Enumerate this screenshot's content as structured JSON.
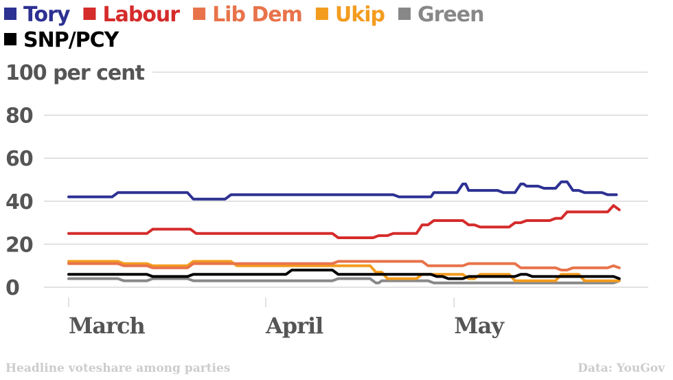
{
  "chart_data": {
    "type": "line",
    "title": "",
    "y_unit_label": "100 per cent",
    "ylim": [
      0,
      100
    ],
    "yticks": [
      0,
      20,
      40,
      60,
      80,
      100
    ],
    "ytick_labels": [
      "0",
      "20",
      "40",
      "60",
      "80",
      "100 per cent"
    ],
    "xlim": [
      0,
      100
    ],
    "month_labels": [
      {
        "label": "March",
        "x": 0
      },
      {
        "label": "April",
        "x": 34
      },
      {
        "label": "May",
        "x": 66.5
      }
    ],
    "grid": true,
    "legend_position": "top-left",
    "footnote_left": "Headline voteshare among parties",
    "footnote_right": "Data: YouGov",
    "series": [
      {
        "name": "Tory",
        "color": "#2d3192",
        "x": [
          0,
          7.5,
          8.5,
          20.5,
          21.5,
          27,
          28,
          56,
          57,
          62.5,
          63,
          67,
          68,
          68.5,
          69,
          74,
          75,
          77,
          78,
          78.5,
          79,
          81,
          82,
          84,
          85,
          86,
          87,
          88,
          89,
          92,
          93,
          94.5
        ],
        "y": [
          42,
          42,
          44,
          44,
          41,
          41,
          43,
          43,
          42,
          42,
          44,
          44,
          48,
          48,
          45,
          45,
          44,
          44,
          48,
          48,
          47,
          47,
          46,
          46,
          49,
          49,
          45,
          45,
          44,
          44,
          43,
          43
        ]
      },
      {
        "name": "Labour",
        "color": "#d52b2b",
        "x": [
          0,
          13.5,
          14.5,
          21,
          22,
          45.5,
          46.5,
          52.5,
          53.5,
          55,
          56,
          60,
          61,
          62,
          63,
          68,
          69,
          70,
          71,
          76,
          77,
          78,
          79,
          83,
          84,
          85,
          86,
          93,
          94,
          95
        ],
        "y": [
          25,
          25,
          27,
          27,
          25,
          25,
          23,
          23,
          24,
          24,
          25,
          25,
          29,
          29,
          31,
          31,
          29,
          29,
          28,
          28,
          30,
          30,
          31,
          31,
          32,
          32,
          35,
          35,
          38,
          36
        ]
      },
      {
        "name": "Lib Dem",
        "color": "#e8734a",
        "x": [
          0,
          8.5,
          9.5,
          13.5,
          14.5,
          20.5,
          21.5,
          28,
          29,
          45.5,
          46.5,
          59,
          60,
          61,
          62,
          68,
          69,
          70,
          71,
          77,
          78,
          84,
          85,
          86,
          87,
          93,
          94,
          95
        ],
        "y": [
          11,
          11,
          10,
          10,
          9,
          9,
          11,
          11,
          11,
          11,
          12,
          12,
          12,
          12,
          10,
          10,
          11,
          11,
          11,
          11,
          9,
          9,
          8,
          8,
          9,
          9,
          10,
          9
        ]
      },
      {
        "name": "Ukip",
        "color": "#f39c1e",
        "x": [
          0,
          8.5,
          9.5,
          13.5,
          14.5,
          20.5,
          21.5,
          28,
          29,
          45.5,
          46.5,
          52,
          53,
          54,
          55,
          60,
          61,
          63,
          64,
          68,
          69,
          70,
          71,
          76,
          77,
          82,
          83,
          84,
          85,
          88,
          89,
          93,
          94,
          95
        ],
        "y": [
          12,
          12,
          11,
          11,
          10,
          10,
          12,
          12,
          10,
          10,
          10,
          10,
          7,
          7,
          4,
          4,
          6,
          6,
          6,
          6,
          4,
          4,
          6,
          6,
          3,
          3,
          3,
          3,
          6,
          6,
          3,
          3,
          3,
          3
        ]
      },
      {
        "name": "Green",
        "color": "#888888",
        "x": [
          0,
          8.5,
          9.5,
          13.5,
          14.5,
          20.5,
          21.5,
          45.5,
          46.5,
          52,
          53,
          53.5,
          54,
          62,
          63,
          94,
          95
        ],
        "y": [
          4,
          4,
          3,
          3,
          4,
          4,
          3,
          3,
          4,
          4,
          2,
          2,
          3,
          3,
          2,
          2,
          3
        ]
      },
      {
        "name": "SNP/PCY",
        "color": "#000000",
        "x": [
          0,
          13.5,
          14.5,
          20.5,
          21.5,
          37.5,
          38.5,
          45.5,
          46.5,
          62.5,
          63.5,
          64.5,
          65.5,
          68,
          69,
          77,
          78,
          79,
          80,
          94,
          95
        ],
        "y": [
          6,
          6,
          5,
          5,
          6,
          6,
          8,
          8,
          6,
          6,
          5,
          5,
          4,
          4,
          5,
          5,
          6,
          6,
          5,
          5,
          4
        ]
      }
    ]
  }
}
